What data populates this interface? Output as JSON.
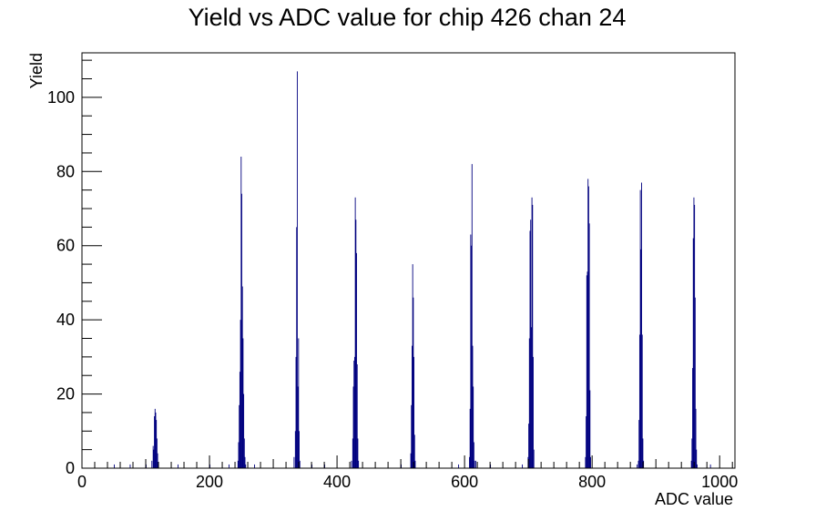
{
  "chart_data": {
    "type": "bar",
    "title": "Yield vs ADC value for chip 426 chan 24",
    "xlabel": "ADC value",
    "ylabel": "Yield",
    "xlim": [
      0,
      1024
    ],
    "ylim": [
      0,
      112
    ],
    "x_ticks": [
      0,
      200,
      400,
      600,
      800,
      1000
    ],
    "y_ticks": [
      0,
      20,
      40,
      60,
      80,
      100
    ],
    "grid": false,
    "legend": "none",
    "series": [
      {
        "color": "#00007f",
        "bins": [
          [
            50,
            1
          ],
          [
            75,
            1
          ],
          [
            100,
            1
          ],
          [
            109,
            2
          ],
          [
            111,
            6
          ],
          [
            112,
            5
          ],
          [
            113,
            14
          ],
          [
            114,
            16
          ],
          [
            115,
            15
          ],
          [
            116,
            13
          ],
          [
            117,
            8
          ],
          [
            118,
            4
          ],
          [
            119,
            1
          ],
          [
            150,
            1
          ],
          [
            200,
            1
          ],
          [
            230,
            1
          ],
          [
            244,
            2
          ],
          [
            245,
            7
          ],
          [
            246,
            17
          ],
          [
            247,
            26
          ],
          [
            248,
            40
          ],
          [
            249,
            84
          ],
          [
            250,
            74
          ],
          [
            251,
            49
          ],
          [
            252,
            35
          ],
          [
            253,
            20
          ],
          [
            254,
            8
          ],
          [
            255,
            3
          ],
          [
            256,
            1
          ],
          [
            270,
            1
          ],
          [
            332,
            3
          ],
          [
            334,
            10
          ],
          [
            335,
            30
          ],
          [
            336,
            65
          ],
          [
            337,
            107
          ],
          [
            338,
            22
          ],
          [
            339,
            35
          ],
          [
            340,
            10
          ],
          [
            341,
            2
          ],
          [
            360,
            1
          ],
          [
            380,
            1
          ],
          [
            422,
            2
          ],
          [
            424,
            8
          ],
          [
            425,
            22
          ],
          [
            426,
            29
          ],
          [
            427,
            30
          ],
          [
            428,
            73
          ],
          [
            429,
            67
          ],
          [
            430,
            58
          ],
          [
            431,
            28
          ],
          [
            432,
            8
          ],
          [
            433,
            2
          ],
          [
            500,
            1
          ],
          [
            515,
            4
          ],
          [
            516,
            17
          ],
          [
            517,
            33
          ],
          [
            518,
            55
          ],
          [
            519,
            46
          ],
          [
            520,
            30
          ],
          [
            521,
            9
          ],
          [
            522,
            2
          ],
          [
            590,
            1
          ],
          [
            607,
            3
          ],
          [
            608,
            16
          ],
          [
            609,
            63
          ],
          [
            610,
            60
          ],
          [
            611,
            82
          ],
          [
            612,
            33
          ],
          [
            613,
            22
          ],
          [
            614,
            7
          ],
          [
            615,
            2
          ],
          [
            617,
            2
          ],
          [
            640,
            1
          ],
          [
            690,
            1
          ],
          [
            699,
            3
          ],
          [
            700,
            12
          ],
          [
            701,
            35
          ],
          [
            702,
            64
          ],
          [
            703,
            67
          ],
          [
            704,
            38
          ],
          [
            705,
            73
          ],
          [
            706,
            71
          ],
          [
            707,
            30
          ],
          [
            708,
            5
          ],
          [
            789,
            3
          ],
          [
            790,
            14
          ],
          [
            791,
            52
          ],
          [
            792,
            53
          ],
          [
            793,
            78
          ],
          [
            794,
            76
          ],
          [
            795,
            66
          ],
          [
            796,
            21
          ],
          [
            797,
            3
          ],
          [
            870,
            1
          ],
          [
            872,
            2
          ],
          [
            873,
            13
          ],
          [
            874,
            36
          ],
          [
            875,
            75
          ],
          [
            876,
            59
          ],
          [
            877,
            77
          ],
          [
            878,
            36
          ],
          [
            879,
            8
          ],
          [
            880,
            2
          ],
          [
            955,
            2
          ],
          [
            956,
            8
          ],
          [
            957,
            27
          ],
          [
            958,
            62
          ],
          [
            959,
            73
          ],
          [
            960,
            71
          ],
          [
            961,
            46
          ],
          [
            962,
            16
          ],
          [
            963,
            5
          ],
          [
            964,
            1
          ],
          [
            985,
            1
          ]
        ]
      }
    ]
  }
}
